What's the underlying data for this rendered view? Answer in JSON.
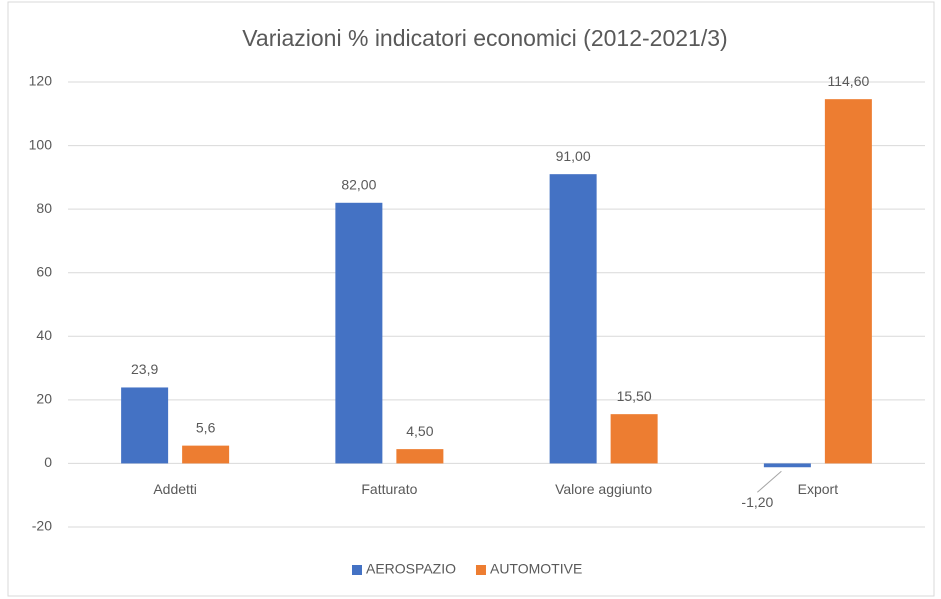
{
  "chart_data": {
    "type": "bar",
    "title": "Variazioni % indicatori economici (2012-2021/3)",
    "categories": [
      "Addetti",
      "Fatturato",
      "Valore aggiunto",
      "Export"
    ],
    "series": [
      {
        "name": "AEROSPAZIO",
        "color": "#4472c4",
        "values": [
          23.9,
          82,
          91,
          -1.2
        ],
        "value_labels": [
          "23,9",
          "82,00",
          "91,00",
          "-1,20"
        ]
      },
      {
        "name": "AUTOMOTIVE",
        "color": "#ed7d31",
        "values": [
          5.6,
          4.5,
          15.5,
          114.6
        ],
        "value_labels": [
          "5,6",
          "4,50",
          "15,50",
          "114,60"
        ]
      }
    ],
    "ylim": [
      -20,
      120
    ],
    "yticks": [
      -20,
      0,
      20,
      40,
      60,
      80,
      100,
      120
    ],
    "grid": true,
    "legend": "bottom"
  }
}
